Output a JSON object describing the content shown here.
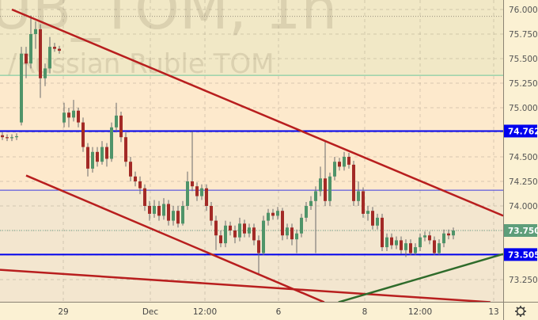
{
  "watermark": {
    "line1": "UB_TOM, 1h",
    "line2": "/Russian Ruble TOM"
  },
  "colors": {
    "up": "#4f9469",
    "down": "#a32a26",
    "trend_red": "#b81e1e",
    "trend_green": "#2e6b2a",
    "level_blue": "#0000ee",
    "last_price": "#5e9e7a"
  },
  "settings_icon": "gear-icon",
  "chart_data": {
    "type": "candlestick",
    "ylim": [
      73.05,
      76.1
    ],
    "grid": true,
    "y_ticks": [
      "76.0000",
      "75.7500",
      "75.5000",
      "75.2500",
      "75.0000",
      "74.5000",
      "74.2500",
      "74.0000",
      "73.2500"
    ],
    "x_ticks": [
      "29",
      "Dec",
      "12:00",
      "6",
      "8",
      "12:00",
      "13"
    ],
    "price_badges": [
      {
        "label": "74.7625",
        "value": 74.7625,
        "color": "#0000ee"
      },
      {
        "label": "73.7500",
        "value": 73.75,
        "color": "#5e9e7a"
      },
      {
        "label": "73.5050",
        "value": 73.505,
        "color": "#0000ee"
      }
    ],
    "horizontal_levels": [
      {
        "value": 74.7625,
        "color": "#0000ee",
        "style": "thick"
      },
      {
        "value": 73.505,
        "color": "#0000ee",
        "style": "thick"
      },
      {
        "value": 74.16,
        "color": "#3a3ae0",
        "style": "thin"
      },
      {
        "value": 75.33,
        "color": "#6cc79b",
        "style": "thin"
      },
      {
        "value": 75.93,
        "color": "#999080",
        "style": "dotted"
      },
      {
        "value": 73.75,
        "color": "#6aa38a",
        "style": "dotted"
      }
    ],
    "zones": [
      {
        "from": 75.33,
        "to": 76.2,
        "color": "#f1e8c6"
      },
      {
        "from": 74.16,
        "to": 75.33,
        "color": "#fde9cc"
      },
      {
        "from": 72.9,
        "to": 74.16,
        "color": "#f3e6cf"
      }
    ],
    "trendlines": [
      {
        "color": "#b81e1e",
        "from": [
          2,
          76.0
        ],
        "to": [
          105.5,
          73.9
        ]
      },
      {
        "color": "#b81e1e",
        "from": [
          5,
          74.31
        ],
        "to": [
          67.8,
          73.02
        ]
      },
      {
        "color": "#b81e1e",
        "from": [
          -0.5,
          73.35
        ],
        "to": [
          102.8,
          73.02
        ]
      },
      {
        "color": "#2e6b2a",
        "from": [
          70.8,
          73.02
        ],
        "to": [
          105.5,
          73.51
        ]
      }
    ],
    "candles": [
      [
        74.72,
        74.75,
        74.67,
        74.7
      ],
      [
        74.7,
        74.73,
        74.66,
        74.69
      ],
      [
        74.69,
        74.73,
        74.66,
        74.7
      ],
      [
        74.7,
        74.74,
        74.67,
        74.71
      ],
      [
        74.85,
        75.62,
        74.82,
        75.55
      ],
      [
        75.55,
        75.62,
        75.3,
        75.45
      ],
      [
        75.45,
        75.94,
        75.4,
        75.75
      ],
      [
        75.75,
        75.88,
        75.6,
        75.8
      ],
      [
        75.8,
        75.85,
        75.1,
        75.3
      ],
      [
        75.3,
        75.45,
        75.22,
        75.4
      ],
      [
        75.4,
        75.72,
        75.35,
        75.62
      ],
      [
        75.62,
        75.66,
        75.57,
        75.6
      ],
      [
        75.6,
        75.63,
        75.55,
        75.58
      ],
      [
        74.85,
        75.05,
        74.8,
        74.95
      ],
      [
        74.95,
        75.0,
        74.8,
        74.9
      ],
      [
        74.9,
        75.08,
        74.86,
        74.97
      ],
      [
        74.97,
        75.0,
        74.8,
        74.85
      ],
      [
        74.85,
        74.9,
        74.55,
        74.6
      ],
      [
        74.6,
        74.64,
        74.3,
        74.38
      ],
      [
        74.38,
        74.6,
        74.34,
        74.55
      ],
      [
        74.55,
        74.6,
        74.4,
        74.45
      ],
      [
        74.45,
        74.66,
        74.42,
        74.6
      ],
      [
        74.6,
        74.64,
        74.4,
        74.48
      ],
      [
        74.48,
        74.85,
        74.45,
        74.8
      ],
      [
        74.8,
        75.05,
        74.76,
        74.92
      ],
      [
        74.92,
        74.96,
        74.65,
        74.7
      ],
      [
        74.7,
        74.75,
        74.4,
        74.45
      ],
      [
        74.45,
        74.5,
        74.25,
        74.3
      ],
      [
        74.3,
        74.35,
        74.2,
        74.25
      ],
      [
        74.25,
        74.3,
        74.12,
        74.18
      ],
      [
        74.18,
        74.22,
        73.95,
        74.0
      ],
      [
        74.0,
        74.05,
        73.85,
        73.92
      ],
      [
        73.92,
        74.06,
        73.88,
        74.0
      ],
      [
        74.0,
        74.05,
        73.85,
        73.9
      ],
      [
        73.9,
        74.08,
        73.86,
        74.02
      ],
      [
        74.02,
        74.06,
        73.8,
        73.85
      ],
      [
        73.85,
        74.0,
        73.8,
        73.95
      ],
      [
        73.95,
        74.0,
        73.78,
        73.82
      ],
      [
        73.82,
        74.05,
        73.8,
        74.0
      ],
      [
        74.0,
        74.35,
        73.96,
        74.25
      ],
      [
        74.25,
        74.76,
        74.15,
        74.2
      ],
      [
        74.2,
        74.24,
        74.05,
        74.1
      ],
      [
        74.1,
        74.22,
        74.06,
        74.18
      ],
      [
        74.18,
        74.22,
        73.95,
        74.0
      ],
      [
        74.0,
        74.04,
        73.8,
        73.85
      ],
      [
        73.85,
        73.9,
        73.55,
        73.7
      ],
      [
        73.7,
        73.75,
        73.58,
        73.62
      ],
      [
        73.62,
        73.85,
        73.58,
        73.8
      ],
      [
        73.8,
        73.84,
        73.7,
        73.75
      ],
      [
        73.75,
        73.8,
        73.62,
        73.68
      ],
      [
        73.68,
        73.88,
        73.64,
        73.82
      ],
      [
        73.82,
        73.86,
        73.68,
        73.72
      ],
      [
        73.72,
        73.82,
        73.68,
        73.78
      ],
      [
        73.78,
        73.82,
        73.6,
        73.65
      ],
      [
        73.65,
        73.7,
        73.3,
        73.52
      ],
      [
        73.52,
        73.9,
        73.5,
        73.85
      ],
      [
        73.85,
        73.97,
        73.8,
        73.93
      ],
      [
        73.93,
        73.97,
        73.86,
        73.9
      ],
      [
        73.9,
        73.99,
        73.86,
        73.95
      ],
      [
        73.95,
        73.98,
        73.65,
        73.7
      ],
      [
        73.7,
        73.82,
        73.66,
        73.78
      ],
      [
        73.78,
        73.82,
        73.6,
        73.66
      ],
      [
        73.66,
        73.76,
        73.52,
        73.72
      ],
      [
        73.72,
        73.92,
        73.68,
        73.88
      ],
      [
        73.88,
        74.04,
        73.84,
        74.0
      ],
      [
        74.0,
        74.1,
        73.96,
        74.05
      ],
      [
        74.05,
        74.2,
        73.52,
        74.15
      ],
      [
        74.15,
        74.4,
        74.1,
        74.28
      ],
      [
        74.28,
        74.66,
        74.0,
        74.05
      ],
      [
        74.05,
        74.34,
        74.0,
        74.3
      ],
      [
        74.3,
        74.5,
        74.26,
        74.45
      ],
      [
        74.45,
        74.49,
        74.36,
        74.4
      ],
      [
        74.4,
        74.55,
        74.36,
        74.5
      ],
      [
        74.5,
        74.54,
        74.38,
        74.42
      ],
      [
        74.42,
        74.46,
        74.0,
        74.05
      ],
      [
        74.05,
        74.25,
        74.0,
        74.15
      ],
      [
        74.15,
        74.19,
        73.88,
        73.92
      ],
      [
        73.92,
        74.0,
        73.85,
        73.95
      ],
      [
        73.95,
        73.99,
        73.76,
        73.8
      ],
      [
        73.8,
        73.92,
        73.76,
        73.88
      ],
      [
        73.88,
        73.92,
        73.54,
        73.58
      ],
      [
        73.58,
        73.72,
        73.54,
        73.68
      ],
      [
        73.68,
        73.72,
        73.56,
        73.6
      ],
      [
        73.6,
        73.69,
        73.56,
        73.65
      ],
      [
        73.65,
        73.69,
        73.51,
        73.55
      ],
      [
        73.55,
        73.66,
        73.48,
        73.62
      ],
      [
        73.62,
        73.66,
        73.5,
        73.52
      ],
      [
        73.52,
        73.62,
        73.5,
        73.58
      ],
      [
        73.58,
        73.72,
        73.54,
        73.68
      ],
      [
        73.68,
        73.74,
        73.64,
        73.7
      ],
      [
        73.7,
        73.74,
        73.61,
        73.65
      ],
      [
        73.65,
        73.69,
        73.5,
        73.52
      ],
      [
        73.52,
        73.66,
        73.5,
        73.62
      ],
      [
        73.62,
        73.76,
        73.58,
        73.72
      ],
      [
        73.72,
        73.76,
        73.66,
        73.7
      ],
      [
        73.7,
        73.78,
        73.66,
        73.75
      ]
    ]
  }
}
